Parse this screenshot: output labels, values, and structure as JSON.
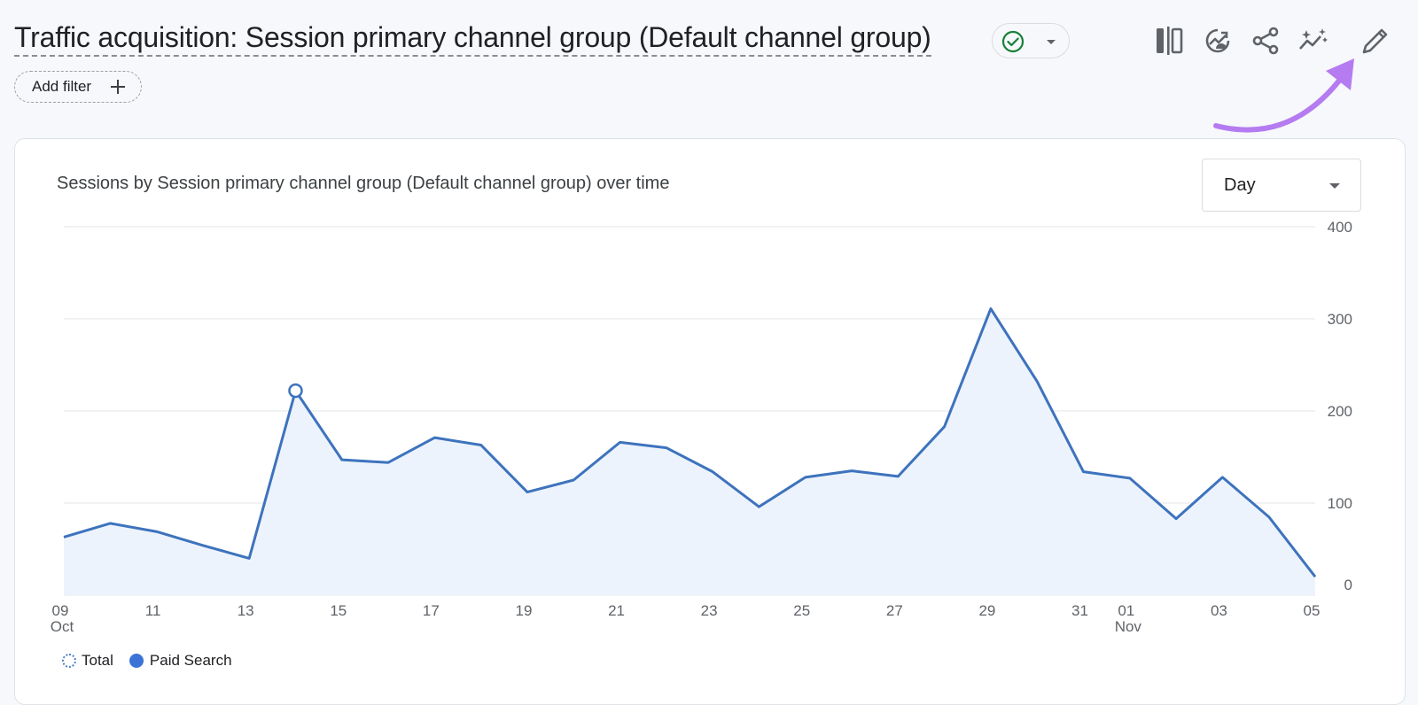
{
  "header": {
    "title": "Traffic acquisition: Session primary channel group (Default channel group)",
    "add_filter_label": "Add filter"
  },
  "toolbar": {
    "icons": [
      "compare-icon",
      "insights-icon",
      "share-icon",
      "sparkle-trend-icon",
      "edit-pencil-icon"
    ]
  },
  "card": {
    "chart_title": "Sessions by Session primary channel group (Default channel group) over time",
    "granularity": "Day"
  },
  "legend": {
    "total": "Total",
    "paid_search": "Paid Search"
  },
  "colors": {
    "line": "#3d73bd",
    "area": "#edf3fc",
    "annotation_arrow": "#b57bf0",
    "check": "#188038"
  },
  "chart_data": {
    "type": "area",
    "title": "Sessions by Session primary channel group (Default channel group) over time",
    "xlabel": "",
    "ylabel": "",
    "ylim": [
      0,
      400
    ],
    "y_ticks": [
      0,
      100,
      200,
      300,
      400
    ],
    "y_axis_position": "right",
    "grid": true,
    "legend_position": "bottom-left",
    "x_tick_labels": [
      {
        "label": "09",
        "sub": "Oct",
        "date": "Oct 09"
      },
      {
        "label": "11",
        "sub": "",
        "date": "Oct 11"
      },
      {
        "label": "13",
        "sub": "",
        "date": "Oct 13"
      },
      {
        "label": "15",
        "sub": "",
        "date": "Oct 15"
      },
      {
        "label": "17",
        "sub": "",
        "date": "Oct 17"
      },
      {
        "label": "19",
        "sub": "",
        "date": "Oct 19"
      },
      {
        "label": "21",
        "sub": "",
        "date": "Oct 21"
      },
      {
        "label": "23",
        "sub": "",
        "date": "Oct 23"
      },
      {
        "label": "25",
        "sub": "",
        "date": "Oct 25"
      },
      {
        "label": "27",
        "sub": "",
        "date": "Oct 27"
      },
      {
        "label": "29",
        "sub": "",
        "date": "Oct 29"
      },
      {
        "label": "31",
        "sub": "",
        "date": "Oct 31"
      },
      {
        "label": "01",
        "sub": "Nov",
        "date": "Nov 01"
      },
      {
        "label": "03",
        "sub": "",
        "date": "Nov 03"
      },
      {
        "label": "05",
        "sub": "",
        "date": "Nov 05"
      }
    ],
    "dates": [
      "Oct 09",
      "Oct 10",
      "Oct 11",
      "Oct 12",
      "Oct 13",
      "Oct 14",
      "Oct 15",
      "Oct 16",
      "Oct 17",
      "Oct 18",
      "Oct 19",
      "Oct 20",
      "Oct 21",
      "Oct 22",
      "Oct 23",
      "Oct 24",
      "Oct 25",
      "Oct 26",
      "Oct 27",
      "Oct 28",
      "Oct 29",
      "Oct 30",
      "Oct 31",
      "Nov 01",
      "Nov 02",
      "Nov 03",
      "Nov 04",
      "Nov 05"
    ],
    "series": [
      {
        "name": "Paid Search",
        "values": [
          63,
          78,
          69,
          54,
          40,
          222,
          147,
          144,
          171,
          163,
          112,
          125,
          166,
          160,
          134,
          96,
          128,
          135,
          129,
          183,
          311,
          232,
          134,
          127,
          83,
          128,
          85,
          20
        ]
      }
    ],
    "highlight_point": {
      "date": "Oct 14",
      "value": 222
    },
    "legend_entries": [
      "Total",
      "Paid Search"
    ]
  }
}
